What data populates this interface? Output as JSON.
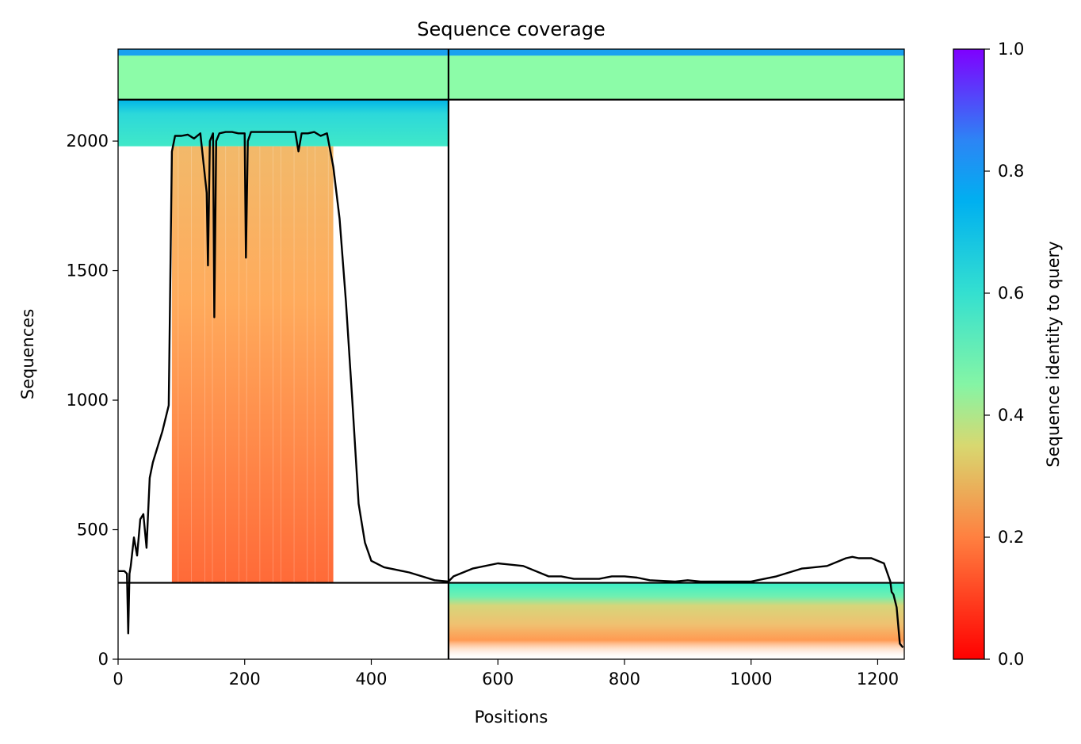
{
  "chart_data": {
    "type": "heatmap",
    "title": "Sequence coverage",
    "xlabel": "Positions",
    "ylabel": "Sequences",
    "xlim": [
      0,
      1242
    ],
    "ylim": [
      0,
      2355
    ],
    "xticks": [
      "0",
      "200",
      "400",
      "600",
      "800",
      "1000",
      "1200"
    ],
    "xtick_values": [
      0,
      200,
      400,
      600,
      800,
      1000,
      1200
    ],
    "yticks": [
      "0",
      "500",
      "1000",
      "1500",
      "2000"
    ],
    "ytick_values": [
      0,
      500,
      1000,
      1500,
      2000
    ],
    "colorbar": {
      "label": "Sequence identity to query",
      "range": [
        0.0,
        1.0
      ],
      "ticks": [
        "0.0",
        "0.2",
        "0.4",
        "0.6",
        "0.8",
        "1.0"
      ],
      "tick_values": [
        0.0,
        0.2,
        0.4,
        0.6,
        0.8,
        1.0
      ],
      "colormap": "rainbow_r"
    },
    "dividers": {
      "vertical_x": 522,
      "horizontal_y": [
        295,
        2160
      ]
    },
    "blocks": [
      {
        "region": "top",
        "x_range": [
          0,
          522
        ],
        "y_range": [
          2160,
          2355
        ],
        "identity": 0.45
      },
      {
        "region": "top",
        "x_range": [
          522,
          1242
        ],
        "y_range": [
          2160,
          2355
        ],
        "identity": 0.45
      },
      {
        "region": "upper-left",
        "x_range": [
          0,
          522
        ],
        "y_range": [
          1980,
          2160
        ],
        "identity": 0.62
      },
      {
        "region": "left-main",
        "x_range": [
          85,
          340
        ],
        "y_range": [
          295,
          1980
        ],
        "identity_top": 0.27,
        "identity_bottom": 0.16
      },
      {
        "region": "bottom-right",
        "x_range": [
          522,
          1242
        ],
        "y_range": [
          0,
          295
        ],
        "identity_top": 0.6,
        "identity_bottom": 0.08
      }
    ],
    "coverage_line": {
      "name": "coverage",
      "x": [
        0,
        10,
        14,
        16,
        18,
        20,
        25,
        30,
        35,
        40,
        45,
        50,
        55,
        60,
        70,
        80,
        85,
        90,
        100,
        110,
        120,
        130,
        140,
        142,
        145,
        150,
        152,
        155,
        160,
        170,
        180,
        190,
        200,
        202,
        205,
        210,
        220,
        230,
        240,
        250,
        260,
        270,
        280,
        285,
        290,
        300,
        310,
        320,
        330,
        340,
        350,
        360,
        370,
        380,
        390,
        400,
        420,
        440,
        460,
        480,
        500,
        522,
        530,
        560,
        600,
        640,
        680,
        700,
        720,
        760,
        780,
        800,
        820,
        840,
        880,
        900,
        920,
        960,
        1000,
        1040,
        1080,
        1120,
        1150,
        1160,
        1170,
        1190,
        1210,
        1220,
        1222,
        1225,
        1230,
        1235,
        1240
      ],
      "y": [
        340,
        340,
        330,
        100,
        330,
        360,
        470,
        400,
        540,
        560,
        430,
        700,
        760,
        800,
        880,
        980,
        1960,
        2020,
        2020,
        2025,
        2010,
        2030,
        1800,
        1520,
        2000,
        2030,
        1320,
        2000,
        2030,
        2035,
        2035,
        2030,
        2030,
        1550,
        2000,
        2035,
        2035,
        2035,
        2035,
        2035,
        2035,
        2035,
        2035,
        1960,
        2030,
        2030,
        2035,
        2020,
        2030,
        1900,
        1700,
        1380,
        1000,
        600,
        450,
        380,
        355,
        345,
        335,
        320,
        305,
        300,
        320,
        350,
        370,
        360,
        320,
        320,
        310,
        310,
        320,
        320,
        315,
        305,
        300,
        305,
        300,
        300,
        300,
        320,
        350,
        360,
        390,
        395,
        390,
        390,
        370,
        300,
        260,
        250,
        200,
        60,
        45
      ]
    }
  }
}
